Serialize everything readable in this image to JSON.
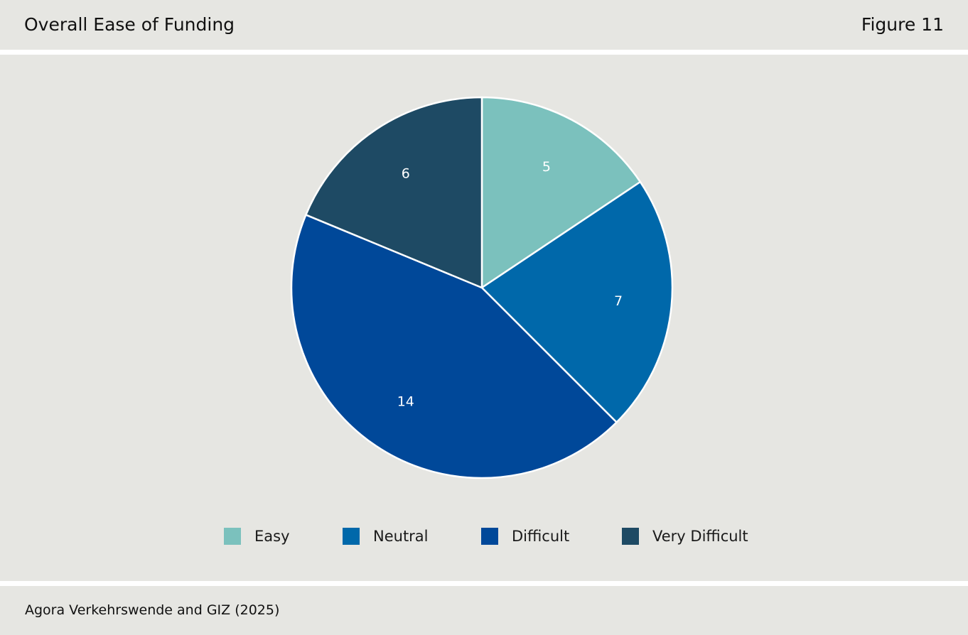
{
  "header": {
    "title": "Overall Ease of Funding",
    "figure_label": "Figure 11"
  },
  "footer": {
    "source": "Agora Verkehrswende and GIZ (2025)"
  },
  "colors": {
    "Easy": "#7bc1bd",
    "Neutral": "#0068aa",
    "Difficult": "#004899",
    "Very Difficult": "#1e4a64"
  },
  "chart_data": {
    "type": "pie",
    "title": "Overall Ease of Funding",
    "categories": [
      "Easy",
      "Neutral",
      "Difficult",
      "Very Difficult"
    ],
    "values": [
      5,
      7,
      14,
      6
    ],
    "start_angle": "12 o'clock",
    "direction": "clockwise",
    "legend": {
      "position": "bottom",
      "items": [
        "Easy",
        "Neutral",
        "Difficult",
        "Very Difficult"
      ]
    }
  }
}
